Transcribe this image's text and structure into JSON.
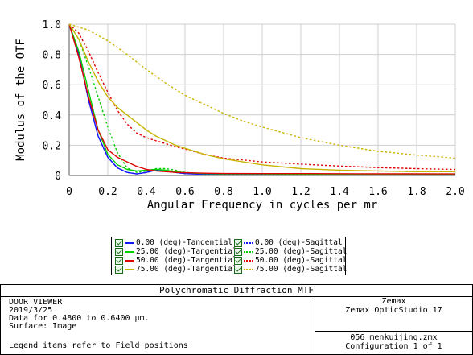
{
  "chart_data": {
    "type": "line",
    "title": "",
    "xlabel": "Angular Frequency in cycles per mr",
    "ylabel": "Modulus of the OTF",
    "xlim": [
      0,
      2.0
    ],
    "ylim": [
      0,
      1.0
    ],
    "xticks": [
      "0",
      "0.2",
      "0.4",
      "0.6",
      "0.8",
      "1.0",
      "1.2",
      "1.4",
      "1.6",
      "1.8",
      "2.0"
    ],
    "yticks": [
      "0",
      "0.2",
      "0.4",
      "0.6",
      "0.8",
      "1.0"
    ],
    "grid": true,
    "legend_position": "below",
    "series": [
      {
        "name": "0.00 (deg)-Tangential",
        "color": "#1414ff",
        "dash": "solid",
        "x": [
          0,
          0.05,
          0.1,
          0.15,
          0.2,
          0.25,
          0.3,
          0.35,
          0.4,
          0.45,
          0.5,
          0.55,
          0.6,
          0.7,
          0.8,
          1.0,
          1.2,
          1.5,
          2.0
        ],
        "y": [
          1,
          0.8,
          0.5,
          0.26,
          0.12,
          0.05,
          0.02,
          0.01,
          0.02,
          0.035,
          0.03,
          0.02,
          0.012,
          0.008,
          0.008,
          0.008,
          0.008,
          0.006,
          0.005
        ]
      },
      {
        "name": "0.00 (deg)-Sagittal",
        "color": "#1414ff",
        "dash": "dotted",
        "x": [
          0,
          0.05,
          0.1,
          0.15,
          0.2,
          0.25,
          0.3,
          0.35,
          0.4,
          0.45,
          0.5,
          0.55,
          0.6,
          0.7,
          0.8,
          1.0,
          1.2,
          1.5,
          2.0
        ],
        "y": [
          1,
          0.8,
          0.5,
          0.26,
          0.12,
          0.05,
          0.02,
          0.01,
          0.02,
          0.035,
          0.03,
          0.02,
          0.012,
          0.008,
          0.008,
          0.008,
          0.008,
          0.006,
          0.005
        ]
      },
      {
        "name": "25.00 (deg)-Tangential",
        "color": "#00d000",
        "dash": "solid",
        "x": [
          0,
          0.05,
          0.1,
          0.15,
          0.2,
          0.25,
          0.3,
          0.35,
          0.4,
          0.45,
          0.5,
          0.55,
          0.6,
          0.7,
          0.8,
          1.0,
          1.2,
          1.5,
          2.0
        ],
        "y": [
          1,
          0.82,
          0.56,
          0.3,
          0.14,
          0.07,
          0.04,
          0.03,
          0.035,
          0.04,
          0.035,
          0.025,
          0.018,
          0.012,
          0.01,
          0.01,
          0.009,
          0.008,
          0.006
        ]
      },
      {
        "name": "25.00 (deg)-Sagittal",
        "color": "#00d000",
        "dash": "dotted",
        "x": [
          0,
          0.05,
          0.1,
          0.15,
          0.2,
          0.25,
          0.3,
          0.35,
          0.4,
          0.45,
          0.5,
          0.55,
          0.6,
          0.7,
          0.8,
          1.0,
          1.2,
          1.5,
          2.0
        ],
        "y": [
          1,
          0.9,
          0.72,
          0.52,
          0.32,
          0.15,
          0.05,
          0.02,
          0.03,
          0.045,
          0.045,
          0.035,
          0.02,
          0.012,
          0.01,
          0.01,
          0.009,
          0.008,
          0.006
        ]
      },
      {
        "name": "50.00 (deg)-Tangential",
        "color": "#e00000",
        "dash": "solid",
        "x": [
          0,
          0.05,
          0.1,
          0.15,
          0.2,
          0.25,
          0.3,
          0.35,
          0.4,
          0.45,
          0.5,
          0.55,
          0.6,
          0.7,
          0.8,
          1.0,
          1.2,
          1.5,
          2.0
        ],
        "y": [
          1,
          0.78,
          0.52,
          0.3,
          0.17,
          0.12,
          0.09,
          0.06,
          0.04,
          0.03,
          0.025,
          0.02,
          0.018,
          0.015,
          0.013,
          0.012,
          0.012,
          0.011,
          0.01
        ]
      },
      {
        "name": "50.00 (deg)-Sagittal",
        "color": "#e00000",
        "dash": "dotted",
        "x": [
          0,
          0.05,
          0.1,
          0.15,
          0.2,
          0.25,
          0.3,
          0.35,
          0.4,
          0.45,
          0.5,
          0.55,
          0.6,
          0.7,
          0.8,
          1.0,
          1.2,
          1.4,
          1.6,
          1.8,
          2.0
        ],
        "y": [
          1,
          0.94,
          0.82,
          0.68,
          0.55,
          0.43,
          0.34,
          0.28,
          0.25,
          0.23,
          0.21,
          0.19,
          0.175,
          0.14,
          0.115,
          0.09,
          0.075,
          0.062,
          0.052,
          0.045,
          0.04
        ]
      },
      {
        "name": "75.00 (deg)-Tangential",
        "color": "#c8b400",
        "dash": "solid",
        "x": [
          0,
          0.05,
          0.1,
          0.15,
          0.2,
          0.25,
          0.3,
          0.35,
          0.4,
          0.45,
          0.5,
          0.55,
          0.6,
          0.7,
          0.8,
          1.0,
          1.2,
          1.4,
          1.6,
          1.8,
          2.0
        ],
        "y": [
          1,
          0.9,
          0.75,
          0.62,
          0.52,
          0.45,
          0.4,
          0.35,
          0.3,
          0.26,
          0.23,
          0.2,
          0.18,
          0.14,
          0.11,
          0.07,
          0.045,
          0.035,
          0.03,
          0.025,
          0.025
        ]
      },
      {
        "name": "75.00 (deg)-Sagittal",
        "color": "#c8b400",
        "dash": "dotted",
        "x": [
          0,
          0.1,
          0.2,
          0.3,
          0.4,
          0.5,
          0.6,
          0.7,
          0.8,
          0.9,
          1.0,
          1.2,
          1.4,
          1.6,
          1.8,
          2.0
        ],
        "y": [
          1,
          0.96,
          0.89,
          0.8,
          0.7,
          0.61,
          0.53,
          0.47,
          0.41,
          0.36,
          0.32,
          0.25,
          0.2,
          0.16,
          0.135,
          0.115
        ]
      }
    ]
  },
  "info": {
    "title": "Polychromatic Diffraction MTF",
    "lines": [
      "DOOR VIEWER",
      "2019/3/25",
      "Data for 0.4800 to 0.6400 µm.",
      "Surface: Image"
    ],
    "legend_note": "Legend items refer to Field positions",
    "company": "Zemax",
    "product": "Zemax OpticStudio 17",
    "file": "056 menkuijing.zmx",
    "config": "Configuration 1 of 1"
  }
}
